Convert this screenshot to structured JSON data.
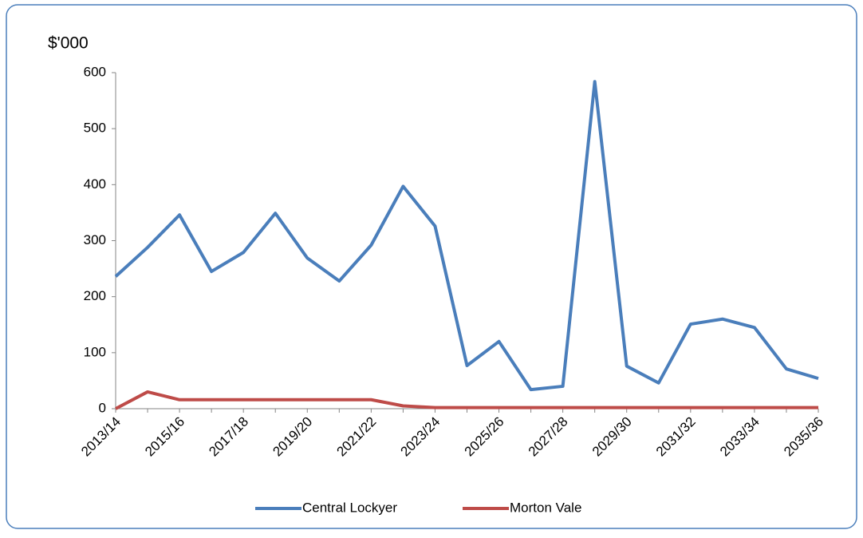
{
  "chart_data": {
    "type": "line",
    "y_axis_label": "$'000",
    "categories": [
      "2013/14",
      null,
      "2015/16",
      null,
      "2017/18",
      null,
      "2019/20",
      null,
      "2021/22",
      null,
      "2023/24",
      null,
      "2025/26",
      null,
      "2027/28",
      null,
      "2029/30",
      null,
      "2031/32",
      null,
      "2033/34",
      null,
      "2035/36"
    ],
    "series": [
      {
        "name": "Central Lockyer",
        "color": "#4a7ebb",
        "values": [
          236,
          288,
          346,
          245,
          279,
          349,
          269,
          228,
          292,
          397,
          326,
          77,
          120,
          34,
          40,
          584,
          76,
          46,
          151,
          160,
          145,
          71,
          54
        ]
      },
      {
        "name": "Morton Vale",
        "color": "#be4b48",
        "values": [
          0,
          30,
          16,
          16,
          16,
          16,
          16,
          16,
          16,
          5,
          2,
          2,
          2,
          2,
          2,
          2,
          2,
          2,
          2,
          2,
          2,
          2,
          2
        ]
      }
    ],
    "ylim": [
      0,
      600
    ],
    "yticks": [
      0,
      100,
      200,
      300,
      400,
      500,
      600
    ],
    "grid": false,
    "legend": "bottom"
  }
}
